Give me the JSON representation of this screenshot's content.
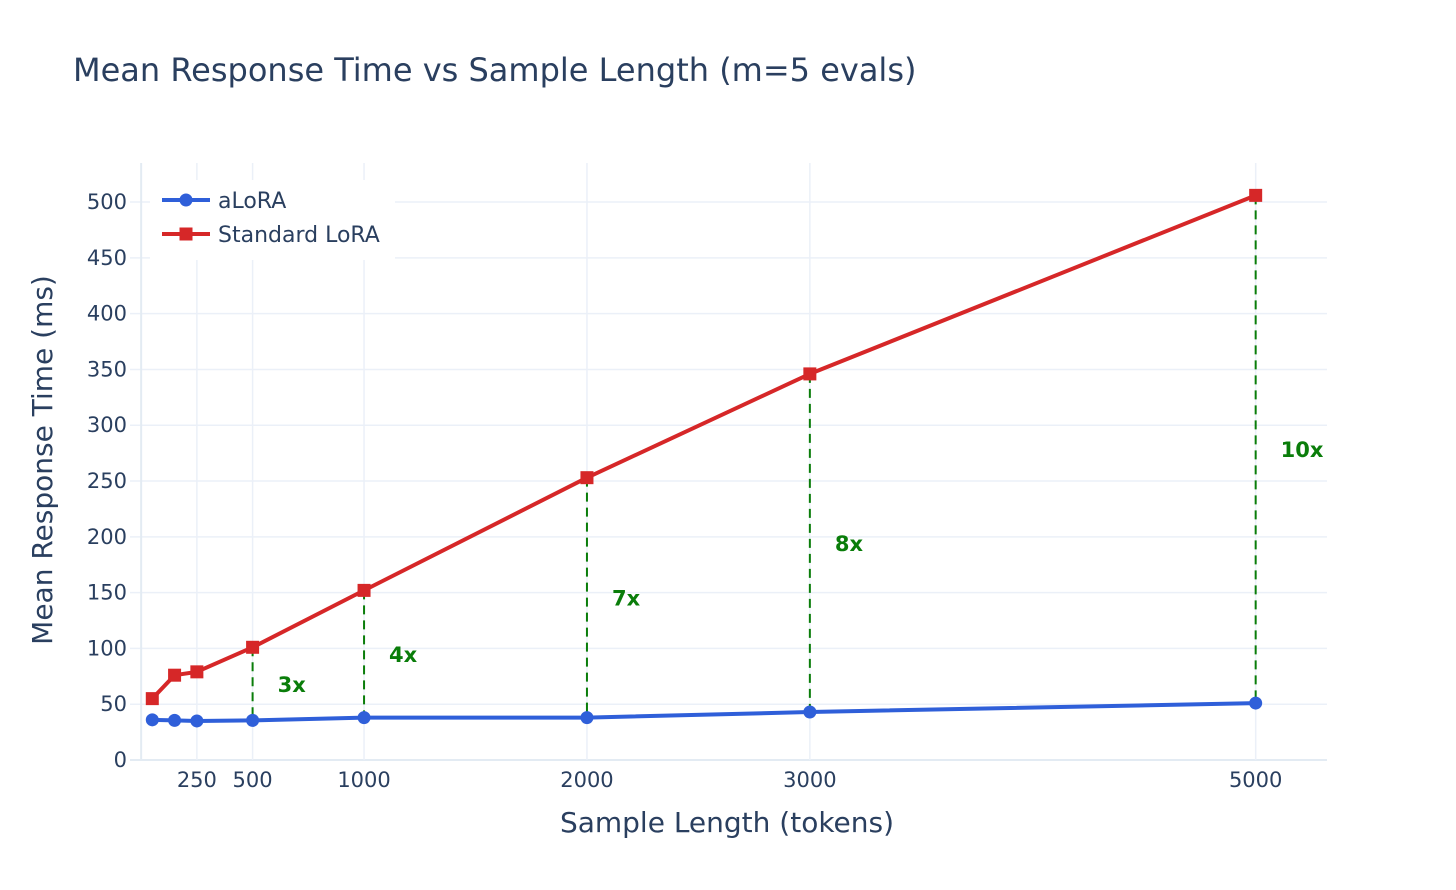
{
  "chart_data": {
    "type": "line",
    "title": "Mean Response Time vs Sample Length (m=5 evals)",
    "xlabel": "Sample Length (tokens)",
    "ylabel": "Mean Response Time (ms)",
    "xlim": [
      -50,
      5320
    ],
    "ylim": [
      0,
      535
    ],
    "xticks": [
      250,
      500,
      1000,
      2000,
      3000,
      5000
    ],
    "yticks": [
      0,
      50,
      100,
      150,
      200,
      250,
      300,
      350,
      400,
      450,
      500
    ],
    "grid": true,
    "legend_position": "top-left",
    "series": [
      {
        "name": "aLoRA",
        "color": "#2f5fd9",
        "marker": "circle",
        "x": [
          50,
          150,
          250,
          500,
          1000,
          2000,
          3000,
          5000
        ],
        "values": [
          36,
          35.5,
          35,
          35.5,
          38,
          38,
          43,
          51
        ]
      },
      {
        "name": "Standard LoRA",
        "color": "#d62728",
        "marker": "square",
        "x": [
          50,
          150,
          250,
          500,
          1000,
          2000,
          3000,
          5000
        ],
        "values": [
          55,
          76,
          79,
          101,
          152,
          253,
          346,
          506
        ]
      }
    ],
    "annotations": [
      {
        "x": 500,
        "label": "3x"
      },
      {
        "x": 1000,
        "label": "4x"
      },
      {
        "x": 2000,
        "label": "7x"
      },
      {
        "x": 3000,
        "label": "8x"
      },
      {
        "x": 5000,
        "label": "10x"
      }
    ],
    "annotation_color": "#0a7d0a"
  }
}
